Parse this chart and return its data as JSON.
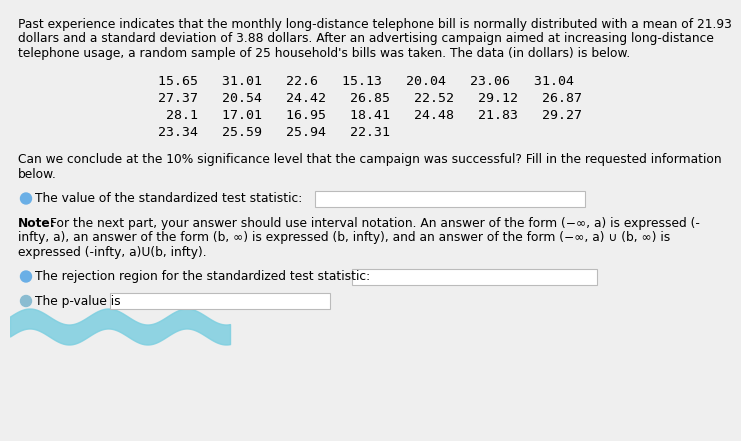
{
  "bg_color": "#efefef",
  "text_color": "#000000",
  "paragraph1_lines": [
    "Past experience indicates that the monthly long-distance telephone bill is normally distributed with a mean of 21.93",
    "dollars and a standard deviation of 3.88 dollars. After an advertising campaign aimed at increasing long-distance",
    "telephone usage, a random sample of 25 household's bills was taken. The data (in dollars) is below."
  ],
  "data_rows": [
    "15.65   31.01   22.6   15.13   20.04   23.06   31.04",
    "27.37   20.54   24.42   26.85   22.52   29.12   26.87",
    " 28.1   17.01   16.95   18.41   24.48   21.83   29.27",
    "23.34   25.59   25.94   22.31"
  ],
  "paragraph2_lines": [
    "Can we conclude at the 10% significance level that the campaign was successful? Fill in the requested information",
    "below."
  ],
  "label1": "The value of the standardized test statistic:",
  "note_bold": "Note:",
  "note_rest": " For the next part, your answer should use interval notation. An answer of the form (−∞, a) is expressed (-",
  "note_line2": "infty, a), an answer of the form (b, ∞) is expressed (b, infty), and an answer of the form (−∞, a) ∪ (b, ∞) is",
  "note_line3": "expressed (-infty, a)U(b, infty).",
  "label2": "The rejection region for the standardized test statistic:",
  "label3": "The p-value is",
  "bullet_color": "#6aafe6",
  "bullet_color2": "#8abcd1",
  "box_color": "#ffffff",
  "box_border": "#bbbbbb",
  "font_size": 8.8,
  "data_font_size": 9.5
}
